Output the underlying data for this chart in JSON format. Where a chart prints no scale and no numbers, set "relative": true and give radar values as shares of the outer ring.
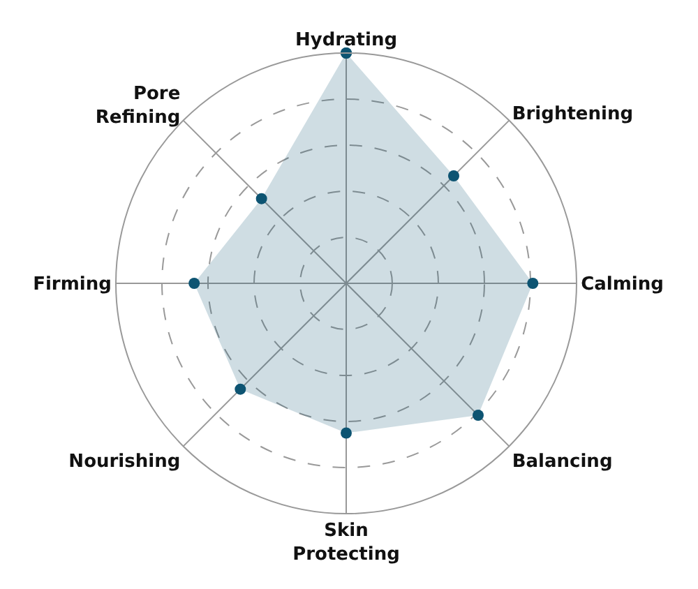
{
  "chart_data": {
    "type": "radar",
    "relative": true,
    "categories": [
      "Hydrating",
      "Brightening",
      "Calming",
      "Balancing",
      "Skin Protecting",
      "Nourishing",
      "Firming",
      "Pore Refining"
    ],
    "series": [
      {
        "color": "#0d5472",
        "values": [
          1.0,
          0.66,
          0.81,
          0.81,
          0.65,
          0.65,
          0.66,
          0.52
        ]
      }
    ],
    "marker": "circle",
    "grid": true,
    "legend": false
  }
}
